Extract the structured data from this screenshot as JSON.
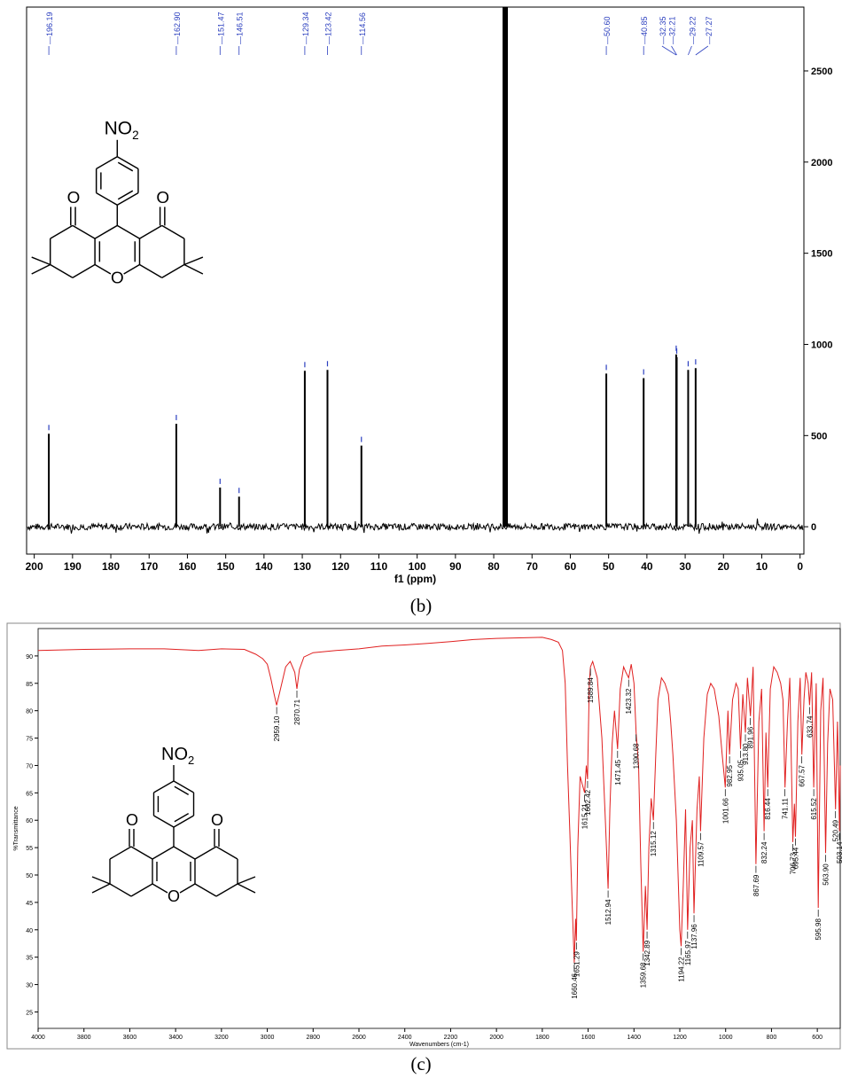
{
  "captions": {
    "b": "(b)",
    "c": "(c)"
  },
  "chart_data": [
    {
      "type": "line",
      "panel": "b",
      "xlabel": "f1 (ppm)",
      "ylabel": "",
      "xlim": [
        202,
        -1
      ],
      "ylim": [
        -150,
        2850
      ],
      "x_reversed": true,
      "x_ticks": [
        200,
        190,
        180,
        170,
        160,
        150,
        140,
        130,
        120,
        110,
        100,
        90,
        80,
        70,
        60,
        50,
        40,
        30,
        20,
        10,
        0
      ],
      "y_ticks": [
        0,
        500,
        1000,
        1500,
        2000,
        2500
      ],
      "y_axis_side": "right",
      "solvent_peak": {
        "x": 77.0,
        "y": 2900
      },
      "peaks": [
        {
          "x": 196.19,
          "y": 510,
          "label": "196.19"
        },
        {
          "x": 162.9,
          "y": 565,
          "label": "162.90"
        },
        {
          "x": 151.47,
          "y": 215,
          "label": "151.47"
        },
        {
          "x": 146.51,
          "y": 165,
          "label": "146.51"
        },
        {
          "x": 129.34,
          "y": 855,
          "label": "129.34"
        },
        {
          "x": 123.42,
          "y": 860,
          "label": "123.42"
        },
        {
          "x": 114.56,
          "y": 445,
          "label": "114.56"
        },
        {
          "x": 50.6,
          "y": 840,
          "label": "50.60"
        },
        {
          "x": 40.85,
          "y": 815,
          "label": "40.85"
        },
        {
          "x": 32.35,
          "y": 945,
          "label": "32.35"
        },
        {
          "x": 32.21,
          "y": 930,
          "label": "32.21"
        },
        {
          "x": 29.22,
          "y": 860,
          "label": "29.22"
        },
        {
          "x": 27.27,
          "y": 870,
          "label": "27.27"
        }
      ],
      "structure_label": "NO2"
    },
    {
      "type": "line",
      "panel": "c",
      "xlabel": "Wavenumbers (cm-1)",
      "ylabel": "%Transmittance",
      "xlim": [
        4000,
        500
      ],
      "ylim": [
        22,
        95
      ],
      "x_reversed": true,
      "x_ticks": [
        4000,
        3800,
        3600,
        3400,
        3200,
        3000,
        2800,
        2600,
        2400,
        2200,
        2000,
        1800,
        1600,
        1400,
        1200,
        1000,
        800,
        600
      ],
      "y_ticks": [
        25,
        30,
        35,
        40,
        45,
        50,
        55,
        60,
        65,
        70,
        75,
        80,
        85,
        90
      ],
      "line_color": "#e02020",
      "series": [
        {
          "x": [
            4000,
            3800,
            3600,
            3450,
            3300,
            3200,
            3100,
            3050,
            3020,
            3000,
            2985,
            2970,
            2959.1,
            2945,
            2920,
            2900,
            2880,
            2870.71,
            2860,
            2840,
            2800,
            2700,
            2600,
            2500,
            2400,
            2300,
            2200,
            2100,
            2000,
            1900,
            1800,
            1760,
            1730,
            1712,
            1700,
            1690,
            1680,
            1670,
            1660.46,
            1655,
            1651.29,
            1645,
            1635,
            1625,
            1615.21,
            1608,
            1602.42,
            1595,
            1589.84,
            1580,
            1560,
            1540,
            1525,
            1512.94,
            1505,
            1495,
            1485,
            1471.45,
            1460,
            1445,
            1435,
            1423.32,
            1412,
            1400,
            1390.68,
            1380,
            1370,
            1359.68,
            1350,
            1342.89,
            1335,
            1325,
            1315.12,
            1305,
            1295,
            1280,
            1265,
            1250,
            1240,
            1230,
            1215,
            1200,
            1194.22,
            1185,
            1175,
            1165.97,
            1155,
            1145,
            1137.96,
            1125,
            1115,
            1109.57,
            1095,
            1080,
            1065,
            1050,
            1030,
            1015,
            1001.66,
            990,
            982.95,
            970,
            955,
            945,
            935.05,
            925,
            913.8,
            905,
            891.96,
            880,
            867.69,
            855,
            843,
            832.24,
            824,
            816.44,
            805,
            790,
            775,
            760,
            750,
            741.11,
            730,
            720,
            706.73,
            700,
            695.44,
            685,
            675,
            667.57,
            658,
            650,
            640,
            633.74,
            625,
            615.52,
            605,
            595.98,
            585,
            575,
            563.9,
            555,
            545,
            533,
            520.49,
            512,
            503.14,
            500
          ],
          "y": [
            91.0,
            91.2,
            91.3,
            91.3,
            91.0,
            91.3,
            91.2,
            90.3,
            89.5,
            88.5,
            86.0,
            83.0,
            81.0,
            83.5,
            88.0,
            89.0,
            87.0,
            84.0,
            87.5,
            89.8,
            90.6,
            91.0,
            91.3,
            91.8,
            92.0,
            92.3,
            92.6,
            93.0,
            93.2,
            93.3,
            93.4,
            93.0,
            92.5,
            91.0,
            85.0,
            70.0,
            58.0,
            45.0,
            34.0,
            42.0,
            38.0,
            55.0,
            68.0,
            66.5,
            65.0,
            70.0,
            67.5,
            85.0,
            88.0,
            89.0,
            86.0,
            75.0,
            60.0,
            47.5,
            62.0,
            74.0,
            80.0,
            73.0,
            84.0,
            88.0,
            87.0,
            86.0,
            88.5,
            85.0,
            76.0,
            70.0,
            52.0,
            36.0,
            48.0,
            40.0,
            55.0,
            64.0,
            60.0,
            72.0,
            82.0,
            86.0,
            85.0,
            83.0,
            78.0,
            72.0,
            60.0,
            40.0,
            37.0,
            48.0,
            62.0,
            40.0,
            55.0,
            60.0,
            43.0,
            62.0,
            68.0,
            58.0,
            75.0,
            83.0,
            85.0,
            84.0,
            79.0,
            72.0,
            66.0,
            80.0,
            72.0,
            82.0,
            85.0,
            84.0,
            73.0,
            83.0,
            76.0,
            86.0,
            79.0,
            88.0,
            52.0,
            78.0,
            84.0,
            58.0,
            76.0,
            66.0,
            84.0,
            88.0,
            87.0,
            85.0,
            82.0,
            66.0,
            78.0,
            86.0,
            56.0,
            63.0,
            57.0,
            78.0,
            86.0,
            72.0,
            82.0,
            87.0,
            85.0,
            81.0,
            87.0,
            66.0,
            85.0,
            44.0,
            80.0,
            86.0,
            54.0,
            74.0,
            84.0,
            82.0,
            62.0,
            78.0,
            58.0,
            70.0
          ]
        }
      ],
      "labels": [
        {
          "x": 2959.1,
          "y": 81.0,
          "label": "2959.10"
        },
        {
          "x": 2870.71,
          "y": 84.0,
          "label": "2870.71"
        },
        {
          "x": 1660.46,
          "y": 34.0,
          "label": "1660.46"
        },
        {
          "x": 1651.29,
          "y": 38.0,
          "label": "1651.29"
        },
        {
          "x": 1615.21,
          "y": 65.0,
          "label": "1615.21"
        },
        {
          "x": 1602.42,
          "y": 67.5,
          "label": "1602.42"
        },
        {
          "x": 1589.84,
          "y": 88.0,
          "label": "1589.84"
        },
        {
          "x": 1512.94,
          "y": 47.5,
          "label": "1512.94"
        },
        {
          "x": 1471.45,
          "y": 73.0,
          "label": "1471.45"
        },
        {
          "x": 1423.32,
          "y": 86.0,
          "label": "1423.32"
        },
        {
          "x": 1390.68,
          "y": 76.0,
          "label": "1390.68"
        },
        {
          "x": 1359.68,
          "y": 36.0,
          "label": "1359.68"
        },
        {
          "x": 1342.89,
          "y": 40.0,
          "label": "1342.89"
        },
        {
          "x": 1315.12,
          "y": 60.0,
          "label": "1315.12"
        },
        {
          "x": 1194.22,
          "y": 37.0,
          "label": "1194.22"
        },
        {
          "x": 1165.97,
          "y": 40.0,
          "label": "1165.97"
        },
        {
          "x": 1137.96,
          "y": 43.0,
          "label": "1137.96"
        },
        {
          "x": 1109.57,
          "y": 58.0,
          "label": "1109.57"
        },
        {
          "x": 1001.66,
          "y": 66.0,
          "label": "1001.66"
        },
        {
          "x": 982.95,
          "y": 72.0,
          "label": "982.95"
        },
        {
          "x": 935.05,
          "y": 73.0,
          "label": "935.05"
        },
        {
          "x": 913.8,
          "y": 76.0,
          "label": "913.80"
        },
        {
          "x": 891.96,
          "y": 79.0,
          "label": "891.96"
        },
        {
          "x": 867.69,
          "y": 52.0,
          "label": "867.69"
        },
        {
          "x": 832.24,
          "y": 58.0,
          "label": "832.24"
        },
        {
          "x": 816.44,
          "y": 66.0,
          "label": "816.44"
        },
        {
          "x": 741.11,
          "y": 66.0,
          "label": "741.11"
        },
        {
          "x": 706.73,
          "y": 56.0,
          "label": "706.73"
        },
        {
          "x": 695.44,
          "y": 57.0,
          "label": "695.44"
        },
        {
          "x": 667.57,
          "y": 72.0,
          "label": "667.57"
        },
        {
          "x": 633.74,
          "y": 81.0,
          "label": "633.74"
        },
        {
          "x": 615.52,
          "y": 66.0,
          "label": "615.52"
        },
        {
          "x": 595.98,
          "y": 44.0,
          "label": "595.98"
        },
        {
          "x": 563.9,
          "y": 54.0,
          "label": "563.90"
        },
        {
          "x": 520.49,
          "y": 62.0,
          "label": "520.49"
        },
        {
          "x": 503.14,
          "y": 58.0,
          "label": "503.14"
        }
      ],
      "structure_label": "NO2"
    }
  ]
}
